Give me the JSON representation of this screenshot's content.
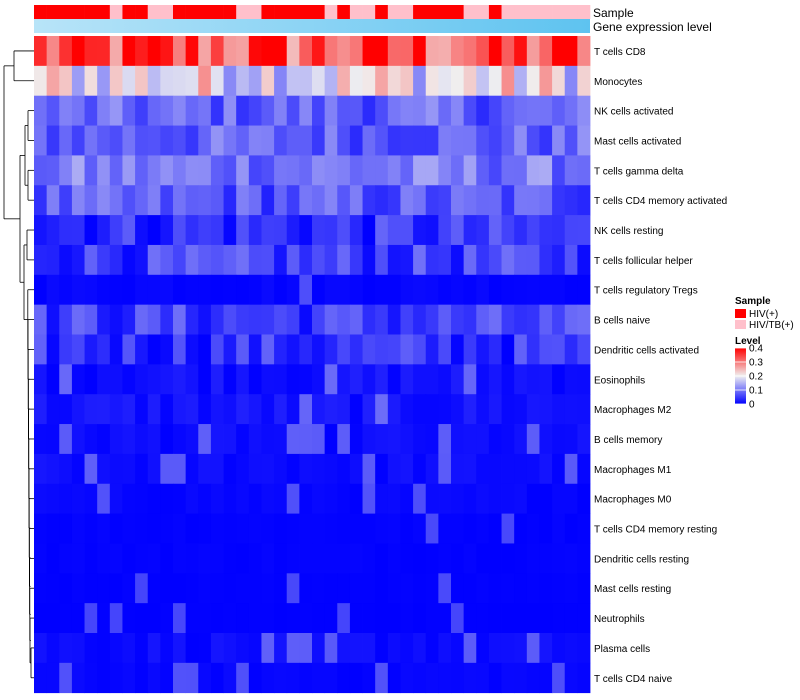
{
  "chart_data": {
    "type": "heatmap",
    "title": "",
    "annotation_tracks": [
      {
        "label": "Sample"
      },
      {
        "label": "Gene expression level"
      }
    ],
    "rows": [
      "T cells CD8",
      "Monocytes",
      "NK cells activated",
      "Mast cells activated",
      "T cells gamma delta",
      "T cells CD4 memory activated",
      "NK cells resting",
      "T cells follicular helper",
      "T cells regulatory  Tregs",
      "B cells naive",
      "Dendritic cells activated",
      "Eosinophils",
      "Macrophages M2",
      "B cells memory",
      "Macrophages M1",
      "Macrophages M0",
      "T cells CD4 memory resting",
      "Dendritic cells resting",
      "Mast cells resting",
      "Neutrophils",
      "Plasma cells",
      "T cells CD4 naive"
    ],
    "n_samples": 44,
    "sample_groups": [
      "HIV(+)",
      "HIV(+)",
      "HIV(+)",
      "HIV(+)",
      "HIV(+)",
      "HIV(+)",
      "HIV/TB(+)",
      "HIV(+)",
      "HIV(+)",
      "HIV/TB(+)",
      "HIV/TB(+)",
      "HIV(+)",
      "HIV(+)",
      "HIV(+)",
      "HIV(+)",
      "HIV(+)",
      "HIV/TB(+)",
      "HIV/TB(+)",
      "HIV(+)",
      "HIV(+)",
      "HIV(+)",
      "HIV(+)",
      "HIV(+)",
      "HIV/TB(+)",
      "HIV(+)",
      "HIV/TB(+)",
      "HIV/TB(+)",
      "HIV(+)",
      "HIV/TB(+)",
      "HIV/TB(+)",
      "HIV(+)",
      "HIV(+)",
      "HIV(+)",
      "HIV(+)",
      "HIV/TB(+)",
      "HIV/TB(+)",
      "HIV(+)",
      "HIV/TB(+)",
      "HIV/TB(+)",
      "HIV/TB(+)",
      "HIV/TB(+)",
      "HIV/TB(+)",
      "HIV/TB(+)",
      "HIV/TB(+)"
    ],
    "row_levels": [
      0.33,
      0.2,
      0.08,
      0.08,
      0.1,
      0.07,
      0.04,
      0.05,
      0.01,
      0.05,
      0.04,
      0.03,
      0.03,
      0.02,
      0.02,
      0.01,
      0.005,
      0.005,
      0.003,
      0.002,
      0.02,
      0.01
    ],
    "color_scale": {
      "min": 0,
      "max": 0.4,
      "low": "#0000ff",
      "mid": "#f0f0f0",
      "high": "#ff0000",
      "mid_value": 0.2
    },
    "legend": {
      "sample": {
        "title": "Sample",
        "items": [
          {
            "label": "HIV(+)",
            "color": "#ff0000"
          },
          {
            "label": "HIV/TB(+)",
            "color": "#ffc0cb"
          }
        ]
      },
      "level": {
        "title": "Level",
        "ticks": [
          {
            "value": 0.4,
            "label": "0.4"
          },
          {
            "value": 0.3,
            "label": "0.3"
          },
          {
            "value": 0.2,
            "label": "0.2"
          },
          {
            "value": 0.1,
            "label": "0.1"
          },
          {
            "value": 0,
            "label": "0"
          }
        ]
      }
    },
    "gradient_colors": [
      "#b8e4f8",
      "#5ec3f0"
    ]
  }
}
